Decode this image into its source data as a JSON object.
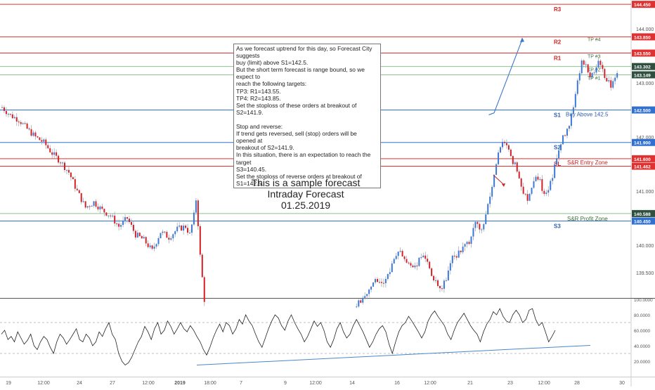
{
  "chart_data": [
    {
      "type": "candlestick",
      "y_axis_side": "right",
      "ylim": [
        139.03,
        144.53
      ],
      "price_ticks": [
        "144.000",
        "143.000",
        "142.000",
        "141.000",
        "140.000",
        "139.500"
      ],
      "x_tick_labels": [
        "19",
        "12:00",
        "24",
        "27",
        "12:00",
        "2019",
        "18:00",
        "7",
        "9",
        "12:00",
        "14",
        "16",
        "12:00",
        "21",
        "23",
        "12:00",
        "28",
        "30"
      ],
      "levels": [
        {
          "key": "r3",
          "value": 144.45,
          "price_label": "144.450",
          "color": "#e03030",
          "tag": "R3",
          "tag_color": "#cc2222"
        },
        {
          "key": "r2",
          "value": 143.85,
          "price_label": "143.850",
          "color": "#e03030",
          "tag": "R2",
          "tag_color": "#cc2222"
        },
        {
          "key": "r1",
          "value": 143.55,
          "price_label": "143.550",
          "color": "#e03030",
          "tag": "R1",
          "tag_color": "#cc2222"
        },
        {
          "key": "tp2",
          "value": 143.302,
          "price_label": "143.302",
          "color": "#8fbf8f",
          "tag": "",
          "tag_color": ""
        },
        {
          "key": "tp1",
          "value": 143.149,
          "price_label": "143.149",
          "color": "#8fbf8f",
          "tag": "",
          "tag_color": ""
        },
        {
          "key": "s1",
          "value": 142.5,
          "price_label": "142.500",
          "color": "#3070d0",
          "tag": "S1",
          "tag_color": "#2a5db0"
        },
        {
          "key": "s2",
          "value": 141.9,
          "price_label": "141.900",
          "color": "#3070d0",
          "tag": "S2",
          "tag_color": "#2a5db0"
        },
        {
          "key": "sl",
          "value": 141.6,
          "price_label": "141.600",
          "color": "#e03030",
          "tag": "SL",
          "tag_color": "#cc2222"
        },
        {
          "key": "sr_entry",
          "value": 141.462,
          "price_label": "141.462",
          "color": "#e03030",
          "tag": "",
          "tag_color": ""
        },
        {
          "key": "sr_profit",
          "value": 140.588,
          "price_label": "140.588",
          "color": "#8fbf8f",
          "tag": "",
          "tag_color": ""
        },
        {
          "key": "s3",
          "value": 140.45,
          "price_label": "140.450",
          "color": "#3070d0",
          "tag": "S3",
          "tag_color": "#2a5db0"
        }
      ],
      "tp_labels": [
        {
          "text": "TP #4",
          "value": 143.85
        },
        {
          "text": "TP #3",
          "value": 143.55
        },
        {
          "text": "TP #2",
          "value": 143.302
        },
        {
          "text": "TP #1",
          "value": 143.149
        }
      ],
      "annotations": {
        "buy_above": "Buy Above 142.5",
        "sr_entry_zone": "S&R Entry Zone",
        "sr_profit_zone": "S&R Profit Zone"
      },
      "price_path": [
        [
          0,
          142.55
        ],
        [
          4,
          142.4
        ],
        [
          8,
          142.32
        ],
        [
          12,
          142.15
        ],
        [
          16,
          142.0
        ],
        [
          20,
          141.9
        ],
        [
          24,
          141.7
        ],
        [
          28,
          141.55
        ],
        [
          32,
          141.35
        ],
        [
          36,
          141.0
        ],
        [
          40,
          140.7
        ],
        [
          44,
          140.8
        ],
        [
          48,
          140.65
        ],
        [
          52,
          140.55
        ],
        [
          56,
          140.35
        ],
        [
          60,
          140.5
        ],
        [
          64,
          140.2
        ],
        [
          68,
          140.1
        ],
        [
          72,
          139.9
        ],
        [
          76,
          140.25
        ],
        [
          80,
          140.15
        ],
        [
          84,
          140.3
        ],
        [
          88,
          140.35
        ],
        [
          90,
          140.2
        ],
        [
          92,
          140.55
        ],
        [
          93,
          140.85
        ],
        [
          94,
          140.4
        ],
        [
          95,
          139.8
        ],
        [
          96,
          139.4
        ],
        [
          97,
          139.0
        ]
      ],
      "price_path_2": [
        [
          170,
          138.9
        ],
        [
          174,
          139.1
        ],
        [
          178,
          139.35
        ],
        [
          182,
          139.25
        ],
        [
          186,
          139.55
        ],
        [
          190,
          139.9
        ],
        [
          194,
          139.7
        ],
        [
          198,
          139.6
        ],
        [
          202,
          139.85
        ],
        [
          206,
          139.45
        ],
        [
          210,
          139.15
        ],
        [
          213,
          139.4
        ],
        [
          216,
          139.75
        ],
        [
          220,
          139.9
        ],
        [
          224,
          140.05
        ],
        [
          227,
          140.4
        ],
        [
          230,
          140.3
        ],
        [
          232,
          140.6
        ],
        [
          234,
          140.9
        ],
        [
          236,
          141.3
        ],
        [
          238,
          141.7
        ],
        [
          240,
          141.95
        ],
        [
          242,
          141.85
        ],
        [
          244,
          141.6
        ],
        [
          246,
          141.5
        ],
        [
          248,
          141.25
        ],
        [
          250,
          141.0
        ],
        [
          252,
          140.85
        ],
        [
          254,
          141.1
        ],
        [
          256,
          141.3
        ],
        [
          258,
          141.2
        ],
        [
          260,
          140.9
        ],
        [
          262,
          141.05
        ],
        [
          264,
          141.3
        ],
        [
          266,
          141.6
        ],
        [
          268,
          141.9
        ],
        [
          270,
          142.05
        ],
        [
          272,
          142.25
        ],
        [
          274,
          142.6
        ],
        [
          276,
          143.05
        ],
        [
          278,
          143.4
        ],
        [
          280,
          143.3
        ],
        [
          282,
          143.1
        ],
        [
          284,
          143.25
        ],
        [
          286,
          143.4
        ],
        [
          288,
          143.25
        ],
        [
          290,
          143.05
        ],
        [
          292,
          142.95
        ],
        [
          294,
          143.1
        ],
        [
          295,
          143.2
        ]
      ],
      "forecast_arrow_up": [
        [
          140,
          142.55
        ],
        [
          148,
          143.8
        ]
      ],
      "forecast_arrow_down": [
        [
          140,
          141.3
        ],
        [
          143,
          141.12
        ]
      ],
      "rsi": {
        "ylim": [
          0,
          100
        ],
        "ticks": [
          "100.0000",
          "80.0000",
          "60.0000",
          "40.0000",
          "20.0000"
        ],
        "dashed_levels": [
          70,
          30
        ],
        "values": [
          55,
          60,
          48,
          52,
          45,
          58,
          50,
          42,
          47,
          55,
          40,
          35,
          45,
          52,
          48,
          38,
          30,
          45,
          55,
          50,
          42,
          48,
          55,
          62,
          48,
          45,
          55,
          50,
          40,
          45,
          58,
          52,
          62,
          70,
          55,
          48,
          30,
          20,
          15,
          18,
          25,
          35,
          45,
          52,
          65,
          58,
          48,
          62,
          70,
          55,
          60,
          72,
          65,
          55,
          62,
          70,
          62,
          58,
          66,
          60,
          52,
          45,
          35,
          28,
          38,
          50,
          60,
          68,
          58,
          70,
          66,
          55,
          62,
          74,
          68,
          80,
          72,
          66,
          55,
          45,
          38,
          50,
          62,
          72,
          80,
          76,
          66,
          60,
          72,
          80,
          70,
          62,
          55,
          45,
          52,
          62,
          72,
          65,
          70,
          60,
          45,
          38,
          48,
          62,
          70,
          58,
          50,
          55,
          66,
          74,
          66,
          58,
          48,
          38,
          45,
          55,
          62,
          66,
          58,
          42,
          30,
          45,
          58,
          66,
          70,
          78,
          72,
          65,
          58,
          50,
          58,
          72,
          80,
          85,
          78,
          72,
          66,
          55,
          48,
          60,
          70,
          76,
          82,
          74,
          66,
          60,
          55,
          45,
          58,
          68,
          74,
          84,
          80,
          88,
          78,
          72,
          70,
          80,
          86,
          80,
          70,
          74,
          86,
          88,
          74,
          66,
          70,
          58,
          45,
          52,
          60
        ],
        "trendline": [
          [
            0,
            15
          ],
          [
            1,
            40.5
          ]
        ]
      }
    }
  ],
  "note": {
    "lines": [
      "As we forecast uptrend for this day, so Forecast City suggests",
      "buy (limit) above S1=142.5.",
      "But the short term forecast is range bound, so we expect to",
      "reach the following targets:",
      "TP3: R1=143.55.",
      "TP4: R2=143.85.",
      "Set the stoploss of these orders at breakout of S2=141.9.",
      "",
      "Stop and reverse:",
      "If trend gets reversed, sell (stop) orders will be opened at",
      "breakout of S2=141.9.",
      "In this situation, there is an expectation to reach the target",
      "S3=140.45.",
      "Set the stoploss of reverse orders at breakout of S1=142.5."
    ]
  },
  "center_title": {
    "line1": "This is a sample forecast",
    "line2": "Intraday Forecast",
    "line3": "01.25.2019"
  },
  "colors": {
    "bull": "#3b78d8",
    "bear": "#d61f26",
    "wick": "#9aa0a8",
    "rsi_line": "#222222",
    "trend": "#4a86c8"
  }
}
